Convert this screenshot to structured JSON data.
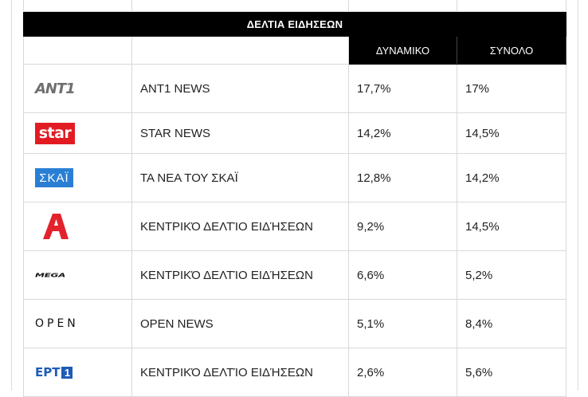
{
  "table": {
    "title": "ΔΕΛΤΙΑ ΕΙΔΗΣΕΩΝ",
    "col_headers": {
      "dynamic": "ΔΥΝΑΜΙΚΟ",
      "total": "ΣΥΝΟΛΟ"
    },
    "rows": [
      {
        "logo": "ant1-logo",
        "logo_text": "ANT1",
        "program": "ANT1 NEWS",
        "dynamic": "17,7%",
        "total": "17%"
      },
      {
        "logo": "star-logo",
        "logo_text": "star",
        "program": "STAR NEWS",
        "dynamic": "14,2%",
        "total": "14,5%"
      },
      {
        "logo": "skai-logo",
        "logo_text": "ΣΚΑΪ",
        "program": "ΤΑ ΝΕΑ ΤΟΥ ΣΚΑΪ",
        "dynamic": "12,8%",
        "total": "14,2%"
      },
      {
        "logo": "alpha-logo",
        "logo_text": "",
        "program": "ΚΕΝΤΡΙΚΌ ΔΕΛΤΊΟ ΕΙΔΉΣΕΩΝ",
        "dynamic": "9,2%",
        "total": "14,5%"
      },
      {
        "logo": "mega-logo",
        "logo_text": "MEGA",
        "program": "ΚΕΝΤΡΙΚΌ ΔΕΛΤΊΟ ΕΙΔΉΣΕΩΝ",
        "dynamic": "6,6%",
        "total": "5,2%"
      },
      {
        "logo": "open-logo",
        "logo_text": "OPEN",
        "program": "OPEN NEWS",
        "dynamic": "5,1%",
        "total": "8,4%"
      },
      {
        "logo": "ert1-logo",
        "logo_text": "ΕΡΤ",
        "logo_num": "1",
        "program": "ΚΕΝΤΡΙΚΌ ΔΕΛΤΊΟ ΕΙΔΉΣΕΩΝ",
        "dynamic": "2,6%",
        "total": "5,6%"
      }
    ]
  },
  "colors": {
    "header_bg": "#000000",
    "star_red": "#e21b23",
    "skai_blue": "#2a7fd4",
    "alpha_red": "#e3232b",
    "ert_blue": "#1e5bb8"
  }
}
